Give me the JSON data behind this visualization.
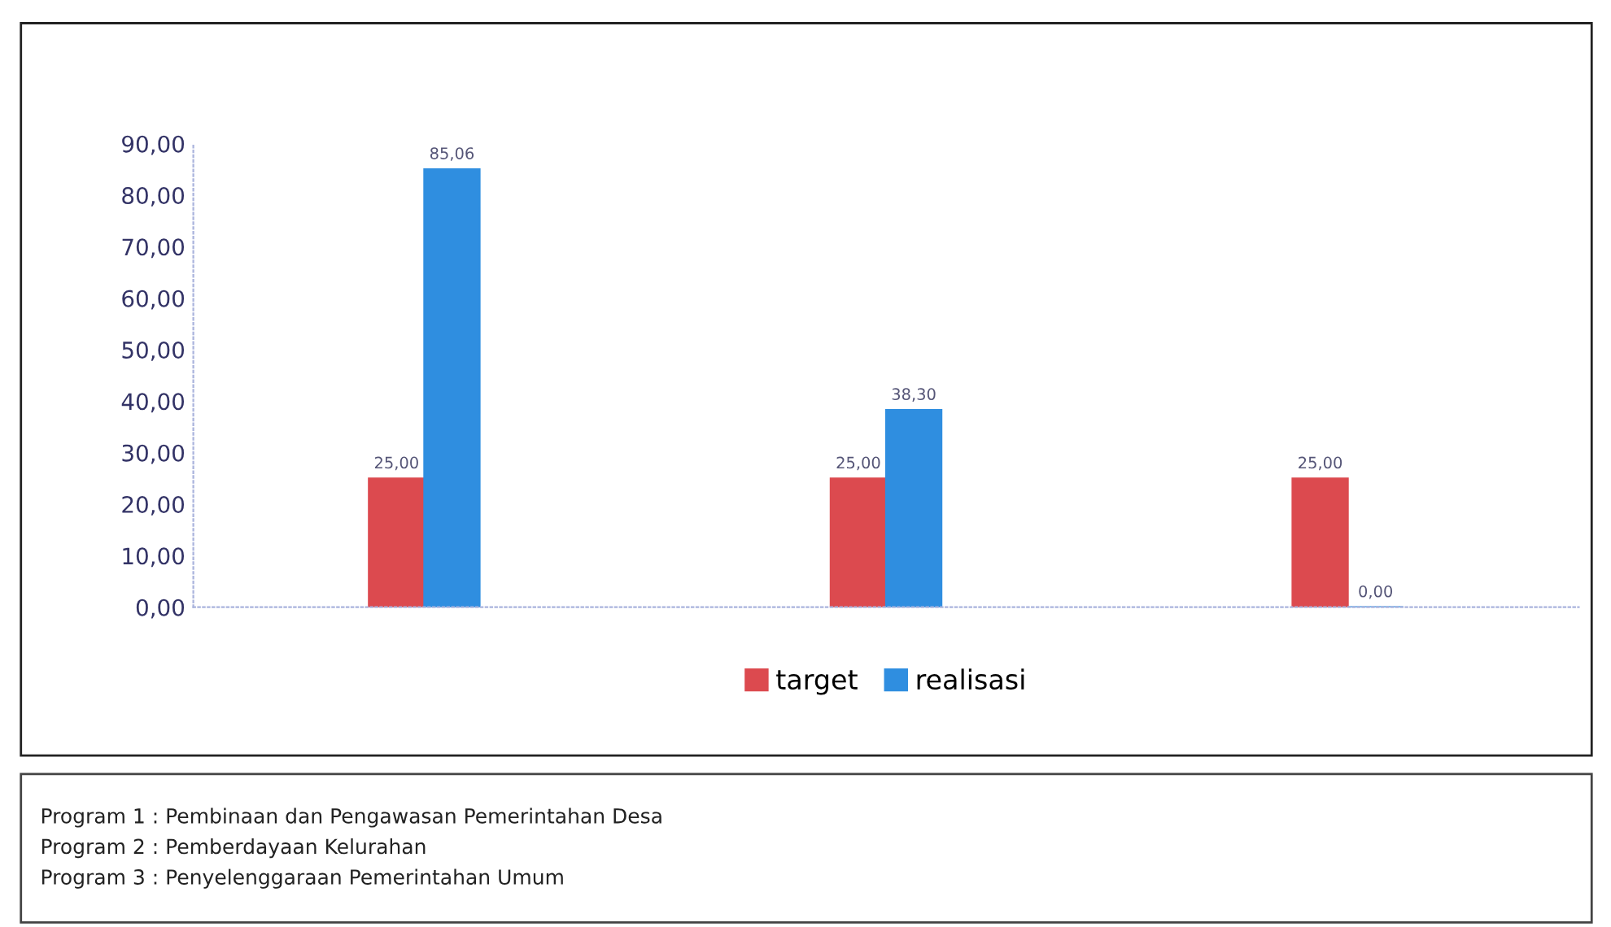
{
  "chart_data": {
    "type": "bar",
    "categories": [
      null,
      null,
      null
    ],
    "series": [
      {
        "name": "target",
        "color": "#dc4a4f",
        "values": [
          25,
          25,
          25
        ],
        "value_labels": [
          "25,00",
          "25,00",
          "25,00"
        ]
      },
      {
        "name": "realisasi",
        "color": "#2f8ee0",
        "values": [
          85.06,
          38.3,
          0
        ],
        "value_labels": [
          "85,06",
          "38,30",
          "0,00"
        ]
      }
    ],
    "ylim": [
      0,
      90
    ],
    "yticks": [
      {
        "value": 0,
        "label": "0,00"
      },
      {
        "value": 10,
        "label": "10,00"
      },
      {
        "value": 20,
        "label": "20,00"
      },
      {
        "value": 30,
        "label": "30,00"
      },
      {
        "value": 40,
        "label": "40,00"
      },
      {
        "value": 50,
        "label": "50,00"
      },
      {
        "value": 60,
        "label": "60,00"
      },
      {
        "value": 70,
        "label": "70,00"
      },
      {
        "value": 80,
        "label": "80,00"
      },
      {
        "value": 90,
        "label": "90,00"
      }
    ],
    "grid": false,
    "legend": "bottom",
    "annotations": [
      "Program 1 : Pembinaan dan Pengawasan Pemerintahan Desa",
      "Program 2 : Pemberdayaan Kelurahan",
      "Program 3 : Penyelenggaraan Pemerintahan Umum"
    ]
  }
}
